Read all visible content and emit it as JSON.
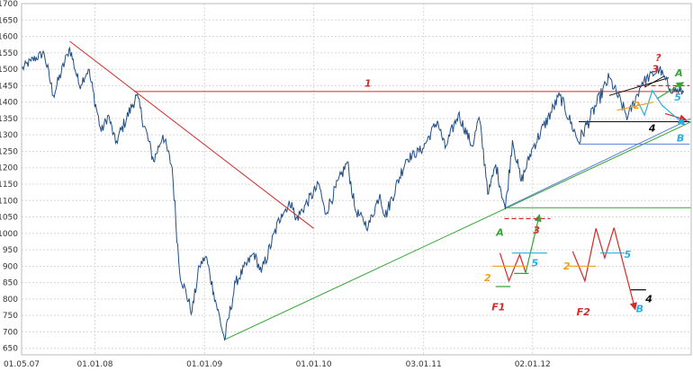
{
  "chart_data": {
    "type": "line",
    "title": "",
    "xlabel": "",
    "ylabel": "",
    "ylim": [
      630,
      1700
    ],
    "yticks": [
      650,
      700,
      750,
      800,
      850,
      900,
      950,
      1000,
      1050,
      1100,
      1150,
      1200,
      1250,
      1300,
      1350,
      1400,
      1450,
      1500,
      1550,
      1600,
      1650,
      1700
    ],
    "xlim": [
      "2007-05-01",
      "2013-06-15"
    ],
    "xticks": [
      {
        "date": "2007-05-01",
        "label": "01.05.07"
      },
      {
        "date": "2008-01-01",
        "label": "01.01.08"
      },
      {
        "date": "2009-01-01",
        "label": "01.01.09"
      },
      {
        "date": "2010-01-01",
        "label": "01.01.10"
      },
      {
        "date": "2011-01-03",
        "label": "03.01.11"
      },
      {
        "date": "2012-01-02",
        "label": "02.01.12"
      }
    ],
    "grid": true,
    "legend": "none",
    "colors": {
      "series": "#1f4e86",
      "red": "#d42a2a",
      "green": "#33a633",
      "blue": "#5a7fd8",
      "black": "#111111",
      "orange": "#f0a020",
      "cyan": "#2aaee0",
      "grid": "#d8d8d8"
    },
    "series": [
      {
        "name": "",
        "anchors": [
          [
            "2007-05-01",
            1500
          ],
          [
            "2007-06-01",
            1525
          ],
          [
            "2007-07-15",
            1550
          ],
          [
            "2007-08-15",
            1420
          ],
          [
            "2007-10-01",
            1545
          ],
          [
            "2007-10-09",
            1565
          ],
          [
            "2007-11-10",
            1450
          ],
          [
            "2007-12-10",
            1500
          ],
          [
            "2008-01-22",
            1310
          ],
          [
            "2008-02-15",
            1360
          ],
          [
            "2008-03-10",
            1275
          ],
          [
            "2008-05-19",
            1420
          ],
          [
            "2008-07-15",
            1220
          ],
          [
            "2008-08-15",
            1300
          ],
          [
            "2008-09-15",
            1200
          ],
          [
            "2008-10-10",
            880
          ],
          [
            "2008-11-20",
            760
          ],
          [
            "2008-12-15",
            900
          ],
          [
            "2009-01-06",
            930
          ],
          [
            "2009-02-01",
            820
          ],
          [
            "2009-03-09",
            676
          ],
          [
            "2009-04-15",
            850
          ],
          [
            "2009-06-15",
            940
          ],
          [
            "2009-07-10",
            880
          ],
          [
            "2009-09-15",
            1060
          ],
          [
            "2009-10-20",
            1095
          ],
          [
            "2009-11-01",
            1040
          ],
          [
            "2010-01-19",
            1150
          ],
          [
            "2010-02-08",
            1060
          ],
          [
            "2010-04-23",
            1218
          ],
          [
            "2010-05-20",
            1070
          ],
          [
            "2010-07-02",
            1020
          ],
          [
            "2010-08-10",
            1120
          ],
          [
            "2010-08-27",
            1050
          ],
          [
            "2010-11-05",
            1225
          ],
          [
            "2010-12-31",
            1258
          ],
          [
            "2011-02-18",
            1343
          ],
          [
            "2011-03-16",
            1260
          ],
          [
            "2011-04-29",
            1363
          ],
          [
            "2011-06-15",
            1265
          ],
          [
            "2011-07-07",
            1353
          ],
          [
            "2011-08-08",
            1120
          ],
          [
            "2011-09-01",
            1210
          ],
          [
            "2011-10-03",
            1074
          ],
          [
            "2011-10-27",
            1284
          ],
          [
            "2011-11-25",
            1158
          ],
          [
            "2012-01-02",
            1260
          ],
          [
            "2012-04-02",
            1420
          ],
          [
            "2012-06-04",
            1278
          ],
          [
            "2012-09-14",
            1474
          ],
          [
            "2012-11-15",
            1353
          ],
          [
            "2013-01-02",
            1460
          ],
          [
            "2013-03-01",
            1500
          ],
          [
            "2013-04-05",
            1440
          ],
          [
            "2013-05-21",
            1430
          ]
        ]
      }
    ],
    "lines": [
      {
        "name": "red-downtrend",
        "color": "red",
        "points": [
          [
            "2007-10-09",
            1585
          ],
          [
            "2010-01-01",
            1015
          ]
        ]
      },
      {
        "name": "red-resistance",
        "color": "red",
        "points": [
          [
            "2008-05-10",
            1432
          ],
          [
            "2013-05-15",
            1432
          ]
        ]
      },
      {
        "name": "green-support",
        "color": "green",
        "points": [
          [
            "2009-03-09",
            676
          ],
          [
            "2013-06-15",
            1340
          ]
        ]
      },
      {
        "name": "green-horizontal",
        "color": "green",
        "points": [
          [
            "2011-10-03",
            1078
          ],
          [
            "2013-06-15",
            1078
          ]
        ]
      },
      {
        "name": "blue-support",
        "color": "blue",
        "points": [
          [
            "2011-10-03",
            1078
          ],
          [
            "2013-06-15",
            1350
          ]
        ]
      },
      {
        "name": "blue-horizontal",
        "color": "blue",
        "points": [
          [
            "2012-06-04",
            1272
          ],
          [
            "2013-06-10",
            1272
          ]
        ]
      },
      {
        "name": "black-horizontal",
        "color": "black",
        "points": [
          [
            "2012-06-04",
            1340
          ],
          [
            "2013-06-10",
            1340
          ]
        ]
      },
      {
        "name": "black-upper",
        "color": "black",
        "points": [
          [
            "2012-09-14",
            1420
          ],
          [
            "2013-04-01",
            1474
          ]
        ]
      },
      {
        "name": "black-steep",
        "color": "black",
        "points": [
          [
            "2013-01-10",
            1445
          ],
          [
            "2013-03-15",
            1478
          ]
        ]
      }
    ],
    "annotations": [
      {
        "text": "1",
        "color": "red",
        "x": "2010-07-01",
        "y": 1447
      },
      {
        "text": "3",
        "color": "red",
        "x": "2013-02-15",
        "y": 1490
      },
      {
        "text": "?",
        "color": "red",
        "x": "2013-02-25",
        "y": 1525
      },
      {
        "text": "A",
        "color": "green",
        "x": "2013-05-05",
        "y": 1478
      },
      {
        "text": "2",
        "color": "orange",
        "x": "2012-12-15",
        "y": 1380
      },
      {
        "text": "5",
        "color": "cyan",
        "x": "2013-05-01",
        "y": 1405
      },
      {
        "text": "4",
        "color": "black",
        "x": "2013-02-05",
        "y": 1310
      },
      {
        "text": "B",
        "color": "cyan",
        "x": "2013-05-10",
        "y": 1280
      },
      {
        "text": "A",
        "color": "green",
        "x": "2011-09-15",
        "y": 992
      },
      {
        "text": "3",
        "color": "red",
        "x": "2012-01-15",
        "y": 1000
      },
      {
        "text": "2",
        "color": "orange",
        "x": "2011-08-05",
        "y": 855
      },
      {
        "text": "5",
        "color": "cyan",
        "x": "2012-01-10",
        "y": 900
      },
      {
        "text": "F1",
        "color": "red",
        "x": "2011-09-10",
        "y": 765
      },
      {
        "text": "2",
        "color": "orange",
        "x": "2012-04-25",
        "y": 890
      },
      {
        "text": "5",
        "color": "cyan",
        "x": "2012-11-15",
        "y": 925
      },
      {
        "text": "4",
        "color": "black",
        "x": "2013-01-25",
        "y": 790
      },
      {
        "text": "F2",
        "color": "red",
        "x": "2012-06-20",
        "y": 750
      },
      {
        "text": "B",
        "color": "cyan",
        "x": "2012-12-25",
        "y": 760
      }
    ],
    "sketch_segments": [
      {
        "color": "red",
        "points": [
          [
            "2011-09-15",
            940
          ],
          [
            "2011-10-15",
            855
          ],
          [
            "2011-11-20",
            935
          ],
          [
            "2011-12-10",
            880
          ]
        ]
      },
      {
        "color": "green",
        "points": [
          [
            "2011-12-10",
            880
          ],
          [
            "2012-01-25",
            1057
          ]
        ],
        "arrow": true
      },
      {
        "color": "red",
        "points": [
          [
            "2011-09-30",
            1045
          ],
          [
            "2012-03-01",
            1045
          ]
        ],
        "dashed": true
      },
      {
        "color": "orange",
        "points": [
          [
            "2011-08-20",
            900
          ],
          [
            "2011-12-15",
            900
          ]
        ]
      },
      {
        "color": "cyan",
        "points": [
          [
            "2011-10-25",
            940
          ],
          [
            "2012-02-20",
            940
          ]
        ]
      },
      {
        "color": "green",
        "points": [
          [
            "2011-09-01",
            838
          ],
          [
            "2011-10-20",
            838
          ]
        ]
      },
      {
        "color": "green",
        "points": [
          [
            "2011-11-01",
            878
          ],
          [
            "2011-12-20",
            878
          ]
        ]
      },
      {
        "color": "red",
        "points": [
          [
            "2012-05-15",
            945
          ],
          [
            "2012-06-25",
            855
          ],
          [
            "2012-08-01",
            1015
          ],
          [
            "2012-08-30",
            925
          ],
          [
            "2012-09-30",
            1017
          ]
        ]
      },
      {
        "color": "red",
        "points": [
          [
            "2012-09-30",
            1017
          ],
          [
            "2012-12-10",
            768
          ]
        ],
        "arrow": true
      },
      {
        "color": "orange",
        "points": [
          [
            "2012-05-01",
            900
          ],
          [
            "2012-08-01",
            900
          ]
        ]
      },
      {
        "color": "cyan",
        "points": [
          [
            "2012-08-15",
            940
          ],
          [
            "2012-11-05",
            940
          ]
        ]
      },
      {
        "color": "black",
        "points": [
          [
            "2012-11-25",
            828
          ],
          [
            "2013-01-15",
            828
          ]
        ]
      },
      {
        "color": "red",
        "points": [
          [
            "2012-12-15",
            1450
          ],
          [
            "2013-06-10",
            1450
          ]
        ],
        "dashed": true
      },
      {
        "color": "green",
        "points": [
          [
            "2013-02-20",
            1410
          ],
          [
            "2013-05-20",
            1460
          ]
        ],
        "arrow": true
      },
      {
        "color": "red",
        "points": [
          [
            "2013-03-20",
            1365
          ],
          [
            "2013-05-30",
            1345
          ]
        ],
        "arrow": true
      },
      {
        "color": "cyan",
        "points": [
          [
            "2012-12-20",
            1400
          ],
          [
            "2013-01-10",
            1360
          ],
          [
            "2013-02-05",
            1435
          ],
          [
            "2013-03-10",
            1390
          ],
          [
            "2013-05-25",
            1330
          ]
        ],
        "arrow": true
      },
      {
        "color": "orange",
        "points": [
          [
            "2012-10-10",
            1375
          ],
          [
            "2013-02-10",
            1400
          ]
        ]
      }
    ]
  }
}
